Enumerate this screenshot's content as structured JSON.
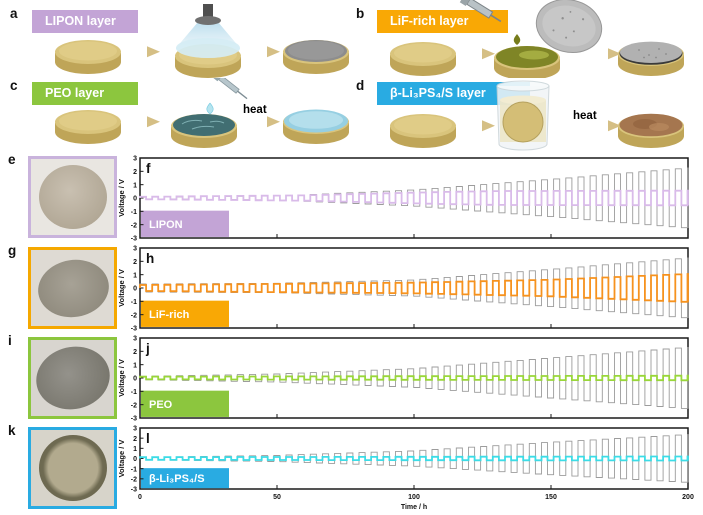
{
  "process_panels": [
    {
      "letter": "a",
      "label": "LIPON layer",
      "color": "#c3a4d6",
      "heat_label": ""
    },
    {
      "letter": "b",
      "label": "LiF-rich layer",
      "color": "#f9a805",
      "heat_label": "heat"
    },
    {
      "letter": "c",
      "label": "PEO layer",
      "color": "#8cc63e",
      "heat_label": "heat"
    },
    {
      "letter": "d",
      "label": "β-Li₃PS₄/S layer",
      "color": "#29abe2",
      "heat_label": "heat"
    }
  ],
  "photo_panels": [
    {
      "letter": "e",
      "accent": "#c9b3dc",
      "description": "pellet photo with lavender frame"
    },
    {
      "letter": "g",
      "accent": "#f5a800",
      "description": "pellet photo with orange frame"
    },
    {
      "letter": "i",
      "accent": "#8cc63e",
      "description": "pellet photo with green frame"
    },
    {
      "letter": "k",
      "accent": "#29abe2",
      "description": "pellet photo with blue frame"
    }
  ],
  "chart_data": [
    {
      "type": "line",
      "panel_letter": "f",
      "annotation_label": "LIPON",
      "annotation_box_color": "#c3a4d6",
      "ylabel": "Voltage / V",
      "xlabel": "Time / h",
      "xlim": [
        0,
        200
      ],
      "ylim": [
        -3,
        3
      ],
      "yticks": [
        3,
        2,
        1,
        0,
        -1,
        -2,
        -3
      ],
      "xticks": [
        0,
        50,
        100,
        150,
        200
      ],
      "x_tick_labels_shown": false,
      "waveform": "square",
      "cycle_period_h": 4.44,
      "grid": false,
      "series": [
        {
          "name": "reference",
          "color": "#9c9c9c",
          "stroke_width": 0.9,
          "amplitude_envelope_V": [
            [
              0,
              0.06
            ],
            [
              50,
              0.15
            ],
            [
              100,
              0.6
            ],
            [
              150,
              1.4
            ],
            [
              200,
              2.25
            ]
          ]
        },
        {
          "name": "LIPON",
          "color": "#d9bbe9",
          "stroke_width": 1.8,
          "amplitude_envelope_V": [
            [
              0,
              0.09
            ],
            [
              60,
              0.2
            ],
            [
              110,
              0.45
            ],
            [
              130,
              0.52
            ],
            [
              200,
              0.55
            ]
          ]
        }
      ]
    },
    {
      "type": "line",
      "panel_letter": "h",
      "annotation_label": "LiF-rich",
      "annotation_box_color": "#f9a805",
      "ylabel": "Voltage / V",
      "xlabel": "Time / h",
      "xlim": [
        0,
        200
      ],
      "ylim": [
        -3,
        3
      ],
      "yticks": [
        3,
        2,
        1,
        0,
        -1,
        -2,
        -3
      ],
      "xticks": [
        0,
        50,
        100,
        150,
        200
      ],
      "x_tick_labels_shown": false,
      "waveform": "square",
      "cycle_period_h": 4.44,
      "grid": false,
      "series": [
        {
          "name": "reference",
          "color": "#9c9c9c",
          "stroke_width": 0.9,
          "amplitude_envelope_V": [
            [
              0,
              0.3
            ],
            [
              50,
              0.35
            ],
            [
              100,
              0.6
            ],
            [
              150,
              1.4
            ],
            [
              200,
              2.25
            ]
          ]
        },
        {
          "name": "LiF-rich",
          "color": "#f6921e",
          "stroke_width": 1.8,
          "amplitude_envelope_V": [
            [
              0,
              0.22
            ],
            [
              100,
              0.4
            ],
            [
              150,
              0.62
            ],
            [
              200,
              1.05
            ]
          ]
        }
      ]
    },
    {
      "type": "line",
      "panel_letter": "j",
      "annotation_label": "PEO",
      "annotation_box_color": "#8cc63e",
      "ylabel": "Voltage / V",
      "xlabel": "Time / h",
      "xlim": [
        0,
        200
      ],
      "ylim": [
        -3,
        3
      ],
      "yticks": [
        3,
        2,
        1,
        0,
        -1,
        -2,
        -3
      ],
      "xticks": [
        0,
        50,
        100,
        150,
        200
      ],
      "x_tick_labels_shown": false,
      "waveform": "square",
      "cycle_period_h": 4.44,
      "grid": false,
      "series": [
        {
          "name": "reference",
          "color": "#9c9c9c",
          "stroke_width": 0.9,
          "amplitude_envelope_V": [
            [
              0,
              0.12
            ],
            [
              50,
              0.3
            ],
            [
              100,
              0.7
            ],
            [
              150,
              1.5
            ],
            [
              200,
              2.3
            ]
          ]
        },
        {
          "name": "PEO",
          "color": "#99d63a",
          "stroke_width": 1.8,
          "amplitude_envelope_V": [
            [
              0,
              0.1
            ],
            [
              200,
              0.17
            ]
          ]
        }
      ]
    },
    {
      "type": "line",
      "panel_letter": "l",
      "annotation_label": "β-Li₃PS₄/S",
      "annotation_box_color": "#29abe2",
      "ylabel": "Voltage / V",
      "xlabel": "Time / h",
      "xlim": [
        0,
        200
      ],
      "ylim": [
        -3,
        3
      ],
      "yticks": [
        3,
        2,
        1,
        0,
        -1,
        -2,
        -3
      ],
      "xticks": [
        0,
        50,
        100,
        150,
        200
      ],
      "x_tick_labels_shown": true,
      "waveform": "square",
      "cycle_period_h": 4.44,
      "grid": false,
      "series": [
        {
          "name": "reference",
          "color": "#9c9c9c",
          "stroke_width": 0.9,
          "amplitude_envelope_V": [
            [
              0,
              0.12
            ],
            [
              50,
              0.3
            ],
            [
              100,
              0.75
            ],
            [
              150,
              1.6
            ],
            [
              200,
              2.35
            ]
          ]
        },
        {
          "name": "β-Li₃PS₄/S",
          "color": "#3cdce6",
          "stroke_width": 1.8,
          "amplitude_envelope_V": [
            [
              0,
              0.13
            ],
            [
              200,
              0.2
            ]
          ]
        }
      ]
    }
  ]
}
